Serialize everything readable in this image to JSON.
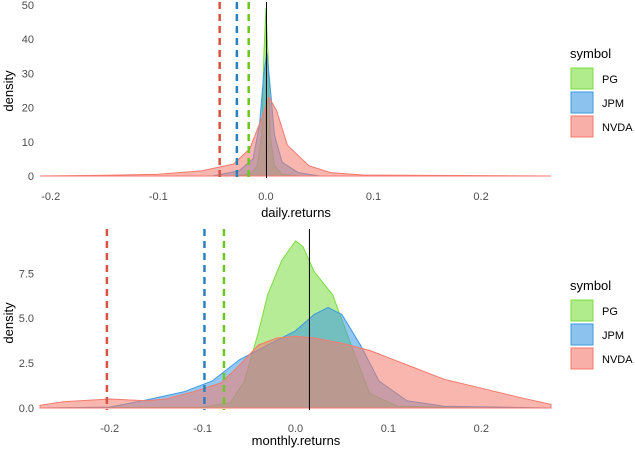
{
  "chart_data": [
    {
      "type": "area",
      "xlabel": "daily.returns",
      "ylabel": "density",
      "xlim": [
        -0.21,
        0.265
      ],
      "ylim": [
        0,
        50
      ],
      "xticks": [
        -0.2,
        -0.1,
        0.0,
        0.1,
        0.2
      ],
      "xtick_labels": [
        "-0.2",
        "-0.1",
        "0.0",
        "0.1",
        "0.2"
      ],
      "yticks": [
        0,
        10,
        20,
        30,
        40,
        50
      ],
      "ytick_labels": [
        "0",
        "10",
        "20",
        "30",
        "40",
        "50"
      ],
      "grid": false,
      "legend": {
        "title": "symbol",
        "position": "right",
        "labels": [
          "PG",
          "JPM",
          "NVDA"
        ]
      },
      "solid_vline": 0.0005,
      "series": [
        {
          "name": "PG",
          "color": "#7CDD3F",
          "mean": -0.016,
          "points": [
            [
              -0.21,
              0
            ],
            [
              -0.03,
              0
            ],
            [
              -0.015,
              0.5
            ],
            [
              -0.008,
              3
            ],
            [
              -0.004,
              12
            ],
            [
              -0.002,
              35
            ],
            [
              0,
              49
            ],
            [
              0.002,
              35
            ],
            [
              0.004,
              12
            ],
            [
              0.008,
              3
            ],
            [
              0.015,
              0.5
            ],
            [
              0.03,
              0
            ],
            [
              0.265,
              0
            ]
          ]
        },
        {
          "name": "JPM",
          "color": "#3D99E2",
          "mean": -0.027,
          "points": [
            [
              -0.21,
              0
            ],
            [
              -0.05,
              0
            ],
            [
              -0.025,
              1.5
            ],
            [
              -0.012,
              5
            ],
            [
              -0.006,
              15
            ],
            [
              -0.002,
              30
            ],
            [
              0.001,
              36
            ],
            [
              0.004,
              26
            ],
            [
              0.008,
              12
            ],
            [
              0.015,
              4
            ],
            [
              0.03,
              1
            ],
            [
              0.05,
              0
            ],
            [
              0.265,
              0
            ]
          ]
        },
        {
          "name": "NVDA",
          "color": "#F47A6C",
          "mean": -0.043,
          "points": [
            [
              -0.21,
              0
            ],
            [
              -0.15,
              0.2
            ],
            [
              -0.1,
              0.5
            ],
            [
              -0.06,
              1.5
            ],
            [
              -0.03,
              3.5
            ],
            [
              -0.015,
              8
            ],
            [
              -0.005,
              16
            ],
            [
              0.003,
              23
            ],
            [
              0.01,
              19
            ],
            [
              0.02,
              9
            ],
            [
              0.04,
              3
            ],
            [
              0.06,
              1
            ],
            [
              0.09,
              0.3
            ],
            [
              0.265,
              0
            ]
          ]
        }
      ]
    },
    {
      "type": "area",
      "xlabel": "monthly.returns",
      "ylabel": "density",
      "xlim": [
        -0.275,
        0.275
      ],
      "ylim": [
        0,
        9.8
      ],
      "xticks": [
        -0.2,
        -0.1,
        0.0,
        0.1,
        0.2
      ],
      "xtick_labels": [
        "-0.2",
        "-0.1",
        "0.0",
        "0.1",
        "0.2"
      ],
      "yticks": [
        0,
        2.5,
        5,
        7.5
      ],
      "ytick_labels": [
        "0.0",
        "2.5",
        "5.0",
        "7.5"
      ],
      "grid": false,
      "legend": {
        "title": "symbol",
        "position": "right",
        "labels": [
          "PG",
          "JPM",
          "NVDA"
        ]
      },
      "solid_vline": 0.015,
      "series": [
        {
          "name": "PG",
          "color": "#7CDD3F",
          "mean": -0.077,
          "points": [
            [
              -0.275,
              0
            ],
            [
              -0.1,
              0.05
            ],
            [
              -0.07,
              0.3
            ],
            [
              -0.055,
              1.5
            ],
            [
              -0.04,
              4.2
            ],
            [
              -0.03,
              6.3
            ],
            [
              -0.015,
              8.2
            ],
            [
              0,
              9.3
            ],
            [
              0.008,
              9.0
            ],
            [
              0.02,
              7.6
            ],
            [
              0.04,
              6.3
            ],
            [
              0.06,
              3.5
            ],
            [
              0.08,
              0.8
            ],
            [
              0.11,
              0.1
            ],
            [
              0.2,
              0
            ],
            [
              0.275,
              0
            ]
          ]
        },
        {
          "name": "JPM",
          "color": "#3D99E2",
          "mean": -0.098,
          "points": [
            [
              -0.275,
              0
            ],
            [
              -0.2,
              0.05
            ],
            [
              -0.16,
              0.45
            ],
            [
              -0.12,
              0.9
            ],
            [
              -0.09,
              1.5
            ],
            [
              -0.06,
              2.7
            ],
            [
              -0.03,
              3.5
            ],
            [
              0,
              4.3
            ],
            [
              0.02,
              5.2
            ],
            [
              0.035,
              5.6
            ],
            [
              0.05,
              5.2
            ],
            [
              0.07,
              3.5
            ],
            [
              0.09,
              1.5
            ],
            [
              0.12,
              0.4
            ],
            [
              0.16,
              0.1
            ],
            [
              0.275,
              0
            ]
          ]
        },
        {
          "name": "NVDA",
          "color": "#F47A6C",
          "mean": -0.203,
          "points": [
            [
              -0.275,
              0.15
            ],
            [
              -0.25,
              0.35
            ],
            [
              -0.2,
              0.5
            ],
            [
              -0.16,
              0.4
            ],
            [
              -0.14,
              0.5
            ],
            [
              -0.11,
              0.9
            ],
            [
              -0.08,
              1.4
            ],
            [
              -0.06,
              2.4
            ],
            [
              -0.04,
              3.5
            ],
            [
              -0.02,
              3.9
            ],
            [
              0,
              4.0
            ],
            [
              0.02,
              3.9
            ],
            [
              0.05,
              3.6
            ],
            [
              0.08,
              3.2
            ],
            [
              0.1,
              2.8
            ],
            [
              0.13,
              2.2
            ],
            [
              0.16,
              1.6
            ],
            [
              0.2,
              1.1
            ],
            [
              0.24,
              0.6
            ],
            [
              0.275,
              0.2
            ]
          ]
        }
      ]
    }
  ]
}
